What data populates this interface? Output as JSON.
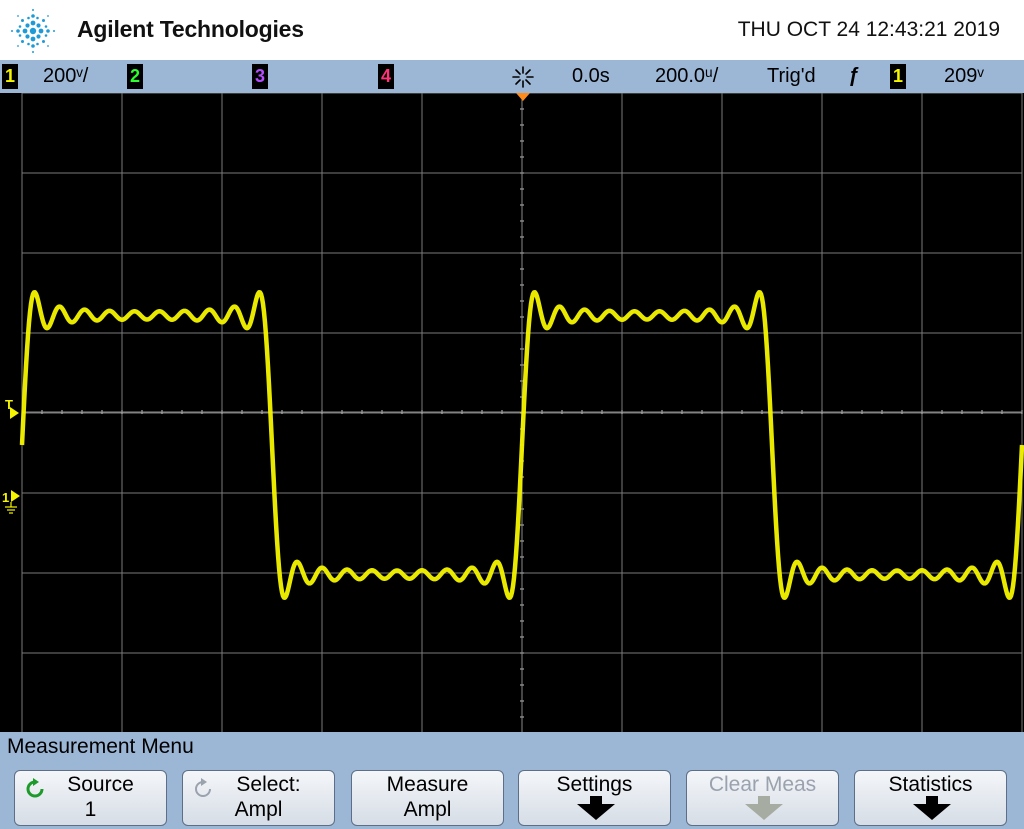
{
  "header": {
    "brand": "Agilent Technologies",
    "datetime": "THU OCT 24 12:43:21 2019"
  },
  "status": {
    "ch1_label": "1",
    "ch1_scale": "200ᵛ/",
    "ch2_label": "2",
    "ch3_label": "3",
    "ch4_label": "4",
    "time_offset": "0.0s",
    "time_scale": "200.0ᵘ/",
    "trigger_state": "Trig'd",
    "trigger_slope": "ƒ",
    "trigger_source": "1",
    "trigger_level": "209ᵛ",
    "colors": {
      "ch1": "#f5f500",
      "ch2": "#2cff2c",
      "ch3": "#b44cff",
      "ch4": "#ff3377"
    }
  },
  "screen": {
    "trigger_marker": "T",
    "ground_marker": "1"
  },
  "menu": {
    "title": "Measurement Menu",
    "softkeys": [
      {
        "line1": "Source",
        "line2": "1"
      },
      {
        "line1": "Select:",
        "line2": "Ampl"
      },
      {
        "line1": "Measure",
        "line2": "Ampl"
      },
      {
        "line1": "Settings",
        "line2": ""
      },
      {
        "line1": "Clear Meas",
        "line2": ""
      },
      {
        "line1": "Statistics",
        "line2": ""
      }
    ]
  }
}
